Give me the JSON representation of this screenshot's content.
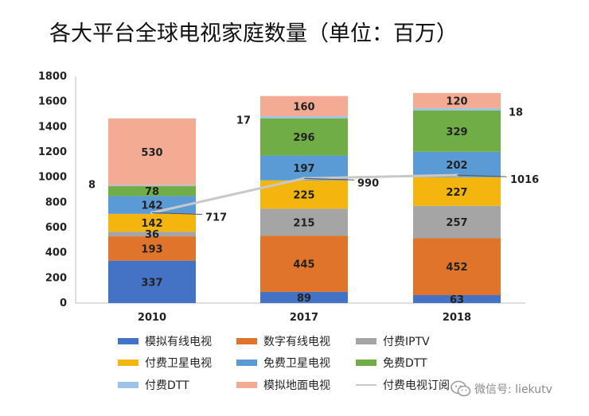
{
  "chart_data": {
    "type": "bar",
    "stacked": true,
    "title": "各大平台全球电视家庭数量（单位：百万）",
    "categories": [
      "2010",
      "2017",
      "2018"
    ],
    "ylim": [
      0,
      1800
    ],
    "yticks": [
      "0",
      "200",
      "400",
      "600",
      "800",
      "1000",
      "1200",
      "1400",
      "1600",
      "1800"
    ],
    "series": [
      {
        "name": "模拟有线电视",
        "color": "#4472c4",
        "values": [
          337,
          89,
          63
        ],
        "labels": [
          "337",
          "89",
          "63"
        ]
      },
      {
        "name": "数字有线电视",
        "color": "#e0742b",
        "values": [
          193,
          445,
          452
        ],
        "labels": [
          "193",
          "445",
          "452"
        ]
      },
      {
        "name": "付费IPTV",
        "color": "#a5a5a5",
        "values": [
          36,
          215,
          257
        ],
        "labels": [
          "36",
          "215",
          "257"
        ]
      },
      {
        "name": "付费卫星电视",
        "color": "#f3b50e",
        "values": [
          142,
          225,
          227
        ],
        "labels": [
          "142",
          "225",
          "227"
        ]
      },
      {
        "name": "免费卫星电视",
        "color": "#5b9bd5",
        "values": [
          142,
          197,
          202
        ],
        "labels": [
          "142",
          "197",
          "202"
        ]
      },
      {
        "name": "免费DTT",
        "color": "#70ad47",
        "values": [
          78,
          296,
          329
        ],
        "labels": [
          "78",
          "296",
          "329"
        ]
      },
      {
        "name": "付费DTT",
        "color": "#9dc3e6",
        "values": [
          8,
          17,
          18
        ],
        "labels": [
          "8",
          "17",
          "18"
        ]
      },
      {
        "name": "模拟地面电视",
        "color": "#f4ab94",
        "values": [
          530,
          160,
          120
        ],
        "labels": [
          "530",
          "160",
          "120"
        ]
      }
    ],
    "line": {
      "name": "付费电视订阅",
      "color": "#c8c8c8",
      "values": [
        717,
        990,
        1016
      ],
      "labels": [
        "717",
        "990",
        "1016"
      ]
    },
    "grid": false,
    "legend": "bottom"
  },
  "watermark": {
    "text": "微信号: liekutv"
  }
}
